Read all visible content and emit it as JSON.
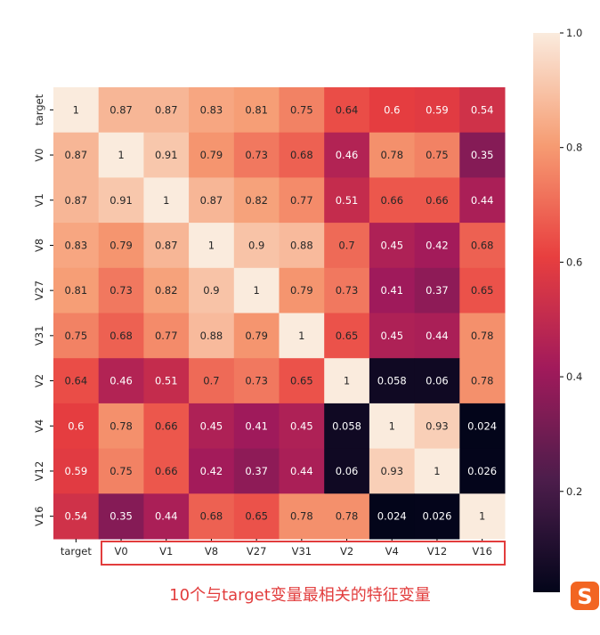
{
  "chart_data": {
    "type": "heatmap",
    "labels": [
      "target",
      "V0",
      "V1",
      "V8",
      "V27",
      "V31",
      "V2",
      "V4",
      "V12",
      "V16"
    ],
    "matrix": [
      [
        1,
        0.87,
        0.87,
        0.83,
        0.81,
        0.75,
        0.64,
        0.6,
        0.59,
        0.54
      ],
      [
        0.87,
        1,
        0.91,
        0.79,
        0.73,
        0.68,
        0.46,
        0.78,
        0.75,
        0.35
      ],
      [
        0.87,
        0.91,
        1,
        0.87,
        0.82,
        0.77,
        0.51,
        0.66,
        0.66,
        0.44
      ],
      [
        0.83,
        0.79,
        0.87,
        1,
        0.9,
        0.88,
        0.7,
        0.45,
        0.42,
        0.68
      ],
      [
        0.81,
        0.73,
        0.82,
        0.9,
        1,
        0.79,
        0.73,
        0.41,
        0.37,
        0.65
      ],
      [
        0.75,
        0.68,
        0.77,
        0.88,
        0.79,
        1,
        0.65,
        0.45,
        0.44,
        0.78
      ],
      [
        0.64,
        0.46,
        0.51,
        0.7,
        0.73,
        0.65,
        1,
        0.058,
        0.06,
        0.78
      ],
      [
        0.6,
        0.78,
        0.66,
        0.45,
        0.41,
        0.45,
        0.058,
        1,
        0.93,
        0.024
      ],
      [
        0.59,
        0.75,
        0.66,
        0.42,
        0.37,
        0.44,
        0.06,
        0.93,
        1,
        0.026
      ],
      [
        0.54,
        0.35,
        0.44,
        0.68,
        0.65,
        0.78,
        0.78,
        0.024,
        0.026,
        1
      ]
    ],
    "colorbar": {
      "min": 0.024,
      "max": 1.0,
      "ticks": [
        0.2,
        0.4,
        0.6,
        0.8,
        1.0
      ],
      "tick_labels": [
        "0.2",
        "0.4",
        "0.6",
        "0.8",
        "1.0"
      ]
    },
    "colormap": [
      "#03051a",
      "#4c1d4b",
      "#a11a5b",
      "#e83f3f",
      "#f69c73",
      "#faebdd"
    ]
  },
  "annotation": {
    "text": "10个与target变量最相关的特征变量",
    "color": "#e23d3d"
  },
  "logo": {
    "icon": "sogou-s-icon",
    "letter": "S",
    "color": "#f26522"
  }
}
